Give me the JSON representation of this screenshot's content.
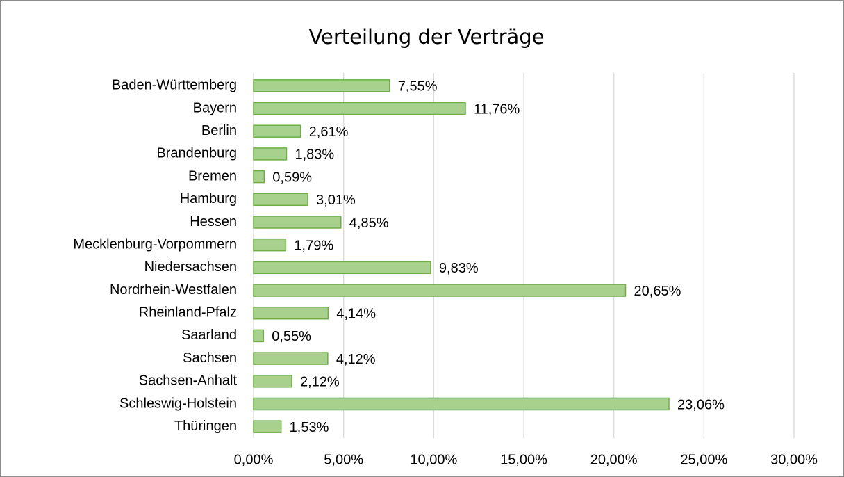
{
  "chart_data": {
    "type": "bar",
    "orientation": "horizontal",
    "title": "Verteilung der Verträge",
    "categories": [
      "Baden-Württemberg",
      "Bayern",
      "Berlin",
      "Brandenburg",
      "Bremen",
      "Hamburg",
      "Hessen",
      "Mecklenburg-Vorpommern",
      "Niedersachsen",
      "Nordrhein-Westfalen",
      "Rheinland-Pfalz",
      "Saarland",
      "Sachsen",
      "Sachsen-Anhalt",
      "Schleswig-Holstein",
      "Thüringen"
    ],
    "values": [
      7.55,
      11.76,
      2.61,
      1.83,
      0.59,
      3.01,
      4.85,
      1.79,
      9.83,
      20.65,
      4.14,
      0.55,
      4.12,
      2.12,
      23.06,
      1.53
    ],
    "value_labels": [
      "7,55%",
      "11,76%",
      "2,61%",
      "1,83%",
      "0,59%",
      "3,01%",
      "4,85%",
      "1,79%",
      "9,83%",
      "20,65%",
      "4,14%",
      "0,55%",
      "4,12%",
      "2,12%",
      "23,06%",
      "1,53%"
    ],
    "color": "#a9d18e",
    "edgecolor": "#70ad47",
    "xlim": [
      0,
      30
    ],
    "xticks": [
      {
        "value": 0,
        "label": "0,00%"
      },
      {
        "value": 5,
        "label": "5,00%"
      },
      {
        "value": 10,
        "label": "10,00%"
      },
      {
        "value": 15,
        "label": "15,00%"
      },
      {
        "value": 20,
        "label": "20,00%"
      },
      {
        "value": 25,
        "label": "25,00%"
      },
      {
        "value": 30,
        "label": "30,00%"
      }
    ],
    "grid": true
  }
}
